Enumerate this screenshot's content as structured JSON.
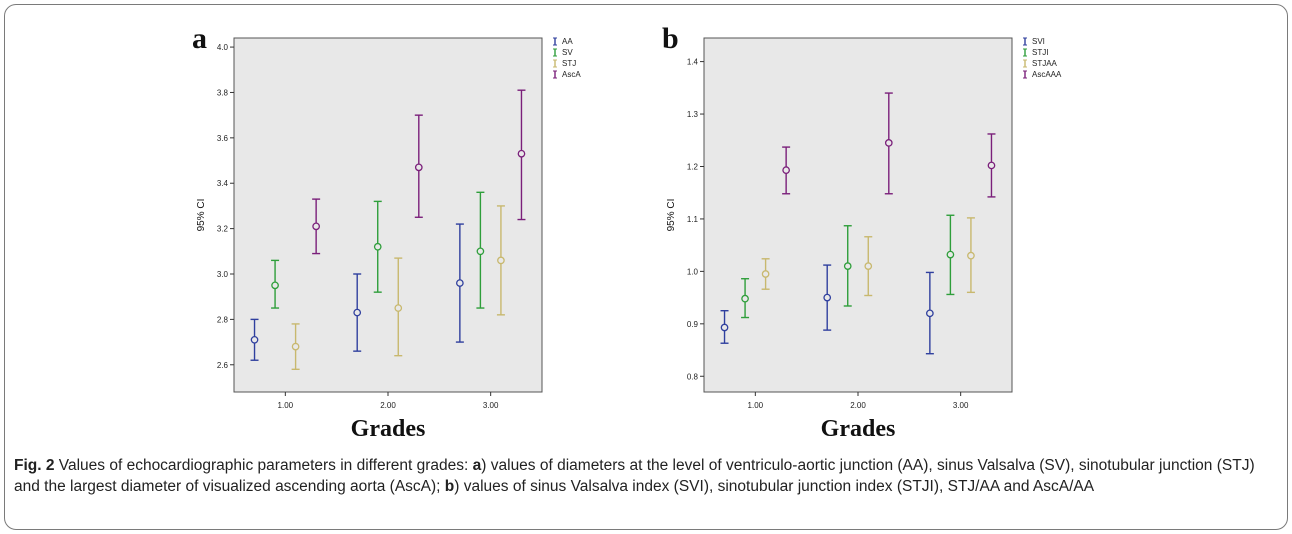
{
  "caption": {
    "figure_label": "Fig. 2",
    "part1": " Values of echocardiographic parameters in different grades: ",
    "letter_a": "a",
    "part2": ") values of diameters at the level of ventriculo-aortic junction (AA), sinus Valsalva (SV), sinotubular junction (STJ) and the largest diameter of visualized ascending aorta (AscA); ",
    "letter_b": "b",
    "part3": ") values of sinus Valsalva index (SVI), sinotubular junction index (STJI), STJ/AA and AscA/AA"
  },
  "chart_data": [
    {
      "type": "errorbar",
      "panel_label": "a",
      "xlabel": "Grades",
      "ylabel": "95% CI",
      "categories": [
        "1.00",
        "2.00",
        "3.00"
      ],
      "ylim": [
        2.48,
        4.04
      ],
      "yticks": [
        "2.6",
        "2.8",
        "3.0",
        "3.2",
        "3.4",
        "3.6",
        "3.8",
        "4.0"
      ],
      "grid": false,
      "legend_position": "top-right outside",
      "series": [
        {
          "name": "AA",
          "color": "#2f3f9e",
          "mean": [
            2.71,
            2.83,
            2.96
          ],
          "lower": [
            2.62,
            2.66,
            2.7
          ],
          "upper": [
            2.8,
            3.0,
            3.22
          ]
        },
        {
          "name": "SV",
          "color": "#2e9e3a",
          "mean": [
            2.95,
            3.12,
            3.1
          ],
          "lower": [
            2.85,
            2.92,
            2.85
          ],
          "upper": [
            3.06,
            3.32,
            3.36
          ]
        },
        {
          "name": "STJ",
          "color": "#c8b86e",
          "mean": [
            2.68,
            2.85,
            3.06
          ],
          "lower": [
            2.58,
            2.64,
            2.82
          ],
          "upper": [
            2.78,
            3.07,
            3.3
          ]
        },
        {
          "name": "AscA",
          "color": "#7a1f7a",
          "mean": [
            3.21,
            3.47,
            3.53
          ],
          "lower": [
            3.09,
            3.25,
            3.24
          ],
          "upper": [
            3.33,
            3.7,
            3.81
          ]
        }
      ]
    },
    {
      "type": "errorbar",
      "panel_label": "b",
      "xlabel": "Grades",
      "ylabel": "95% CI",
      "categories": [
        "1.00",
        "2.00",
        "3.00"
      ],
      "ylim": [
        0.77,
        1.445
      ],
      "yticks": [
        "0.8",
        "0.9",
        "1.0",
        "1.1",
        "1.2",
        "1.3",
        "1.4"
      ],
      "grid": false,
      "legend_position": "top-right outside",
      "series": [
        {
          "name": "SVI",
          "color": "#2f3f9e",
          "mean": [
            0.893,
            0.95,
            0.92
          ],
          "lower": [
            0.863,
            0.888,
            0.843
          ],
          "upper": [
            0.925,
            1.012,
            0.998
          ]
        },
        {
          "name": "STJI",
          "color": "#2e9e3a",
          "mean": [
            0.948,
            1.01,
            1.032
          ],
          "lower": [
            0.912,
            0.934,
            0.956
          ],
          "upper": [
            0.986,
            1.087,
            1.107
          ]
        },
        {
          "name": "STJAA",
          "color": "#c8b86e",
          "mean": [
            0.995,
            1.01,
            1.03
          ],
          "lower": [
            0.966,
            0.954,
            0.96
          ],
          "upper": [
            1.024,
            1.066,
            1.102
          ]
        },
        {
          "name": "AscAAA",
          "color": "#7a1f7a",
          "mean": [
            1.193,
            1.245,
            1.202
          ],
          "lower": [
            1.148,
            1.148,
            1.142
          ],
          "upper": [
            1.237,
            1.34,
            1.262
          ]
        }
      ]
    }
  ]
}
